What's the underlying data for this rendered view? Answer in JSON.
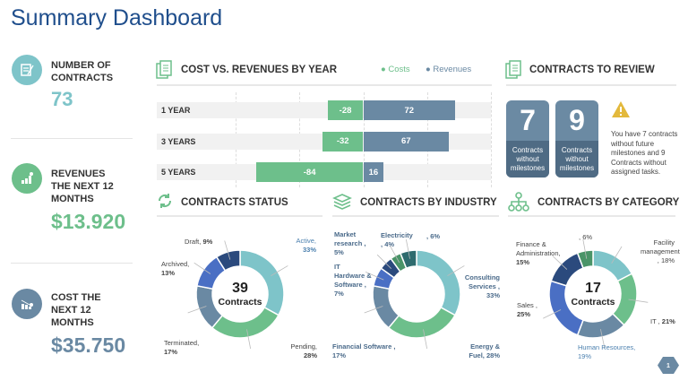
{
  "title": "Summary Dashboard",
  "kpis": [
    {
      "label": "NUMBER OF CONTRACTS",
      "value": "73",
      "color": "#7ec4c9",
      "icon": "contract-icon"
    },
    {
      "label": "REVENUES THE NEXT 12 MONTHS",
      "value": "$13.920",
      "color": "#6dbf8b",
      "icon": "growth-chart-icon"
    },
    {
      "label": "COST THE NEXT 12 MONTHS",
      "value": "$35.750",
      "color": "#6a89a3",
      "icon": "decline-chart-icon"
    }
  ],
  "sections": {
    "cost_rev": "COST VS. REVENUES BY YEAR",
    "review": "CONTRACTS TO REVIEW",
    "status": "CONTRACTS STATUS",
    "industry": "CONTRACTS BY INDUSTRY",
    "category": "CONTRACTS BY CATEGORY"
  },
  "review": {
    "boxes": [
      {
        "value": "7",
        "label": "Contracts without milestones"
      },
      {
        "value": "9",
        "label": "Contracts without milestones"
      }
    ],
    "warning": "You have 7 contracts without future milestones and 9 Contracts without assigned tasks.",
    "warning_color": "#e3b93c"
  },
  "page_number": "1",
  "chart_data": [
    {
      "type": "bar",
      "orientation": "horizontal",
      "title": "COST VS. REVENUES BY YEAR",
      "categories": [
        "1 YEAR",
        "3 YEARS",
        "5 YEARS"
      ],
      "xlim": [
        -100,
        100
      ],
      "grid": true,
      "legend": "top-right",
      "series": [
        {
          "name": "Costs",
          "values": [
            -28,
            -32,
            -84
          ],
          "color": "#6dbf8b"
        },
        {
          "name": "Revenues",
          "values": [
            72,
            67,
            16
          ],
          "color": "#6a89a3"
        }
      ]
    },
    {
      "type": "pie",
      "donut": true,
      "title": "CONTRACTS STATUS",
      "center_value": "39",
      "center_label": "Contracts",
      "slices": [
        {
          "label": "Active,",
          "pct": "33%",
          "value": 33,
          "color": "#7ec4c9"
        },
        {
          "label": "Pending,",
          "pct": "28%",
          "value": 28,
          "color": "#6dbf8b"
        },
        {
          "label": "Terminated,",
          "pct": "17%",
          "value": 17,
          "color": "#6a89a3"
        },
        {
          "label": "Archived,",
          "pct": "13%",
          "value": 13,
          "color": "#4a6fc4"
        },
        {
          "label": "Draft,",
          "pct": "9%",
          "value": 9,
          "color": "#2b4a7d"
        }
      ]
    },
    {
      "type": "pie",
      "donut": true,
      "title": "CONTRACTS BY INDUSTRY",
      "slices": [
        {
          "label": "Consulting Services ,",
          "pct": "33%",
          "value": 33,
          "color": "#7ec4c9"
        },
        {
          "label": "Energy & Fuel,",
          "pct": "28%",
          "value": 28,
          "color": "#6dbf8b"
        },
        {
          "label": "Financial Software ,",
          "pct": "17%",
          "value": 17,
          "color": "#6a89a3"
        },
        {
          "label": "IT Hardware & Software ,",
          "pct": "7%",
          "value": 7,
          "color": "#4a6fc4"
        },
        {
          "label": "Market research ,",
          "pct": "5%",
          "value": 5,
          "color": "#2b4a7d"
        },
        {
          "label": "Electricity ,",
          "pct": "4%",
          "value": 4,
          "color": "#4a9468"
        },
        {
          "label": ",",
          "pct": "6%",
          "value": 6,
          "color": "#2e6b6e"
        }
      ]
    },
    {
      "type": "pie",
      "donut": true,
      "title": "CONTRACTS BY CATEGORY",
      "center_value": "17",
      "center_label": "Contracts",
      "slices": [
        {
          "label": "Facility management ,",
          "pct": "18%",
          "value": 18,
          "color": "#7ec4c9"
        },
        {
          "label": "IT ,",
          "pct": "21%",
          "value": 21,
          "color": "#6dbf8b"
        },
        {
          "label": "Human Resources,",
          "pct": "19%",
          "value": 19,
          "color": "#6a89a3"
        },
        {
          "label": "Sales ,",
          "pct": "25%",
          "value": 25,
          "color": "#4a6fc4"
        },
        {
          "label": "Finance & Administration,",
          "pct": "15%",
          "value": 15,
          "color": "#2b4a7d"
        },
        {
          "label": ",",
          "pct": "6%",
          "value": 6,
          "color": "#4a9468"
        }
      ]
    }
  ]
}
